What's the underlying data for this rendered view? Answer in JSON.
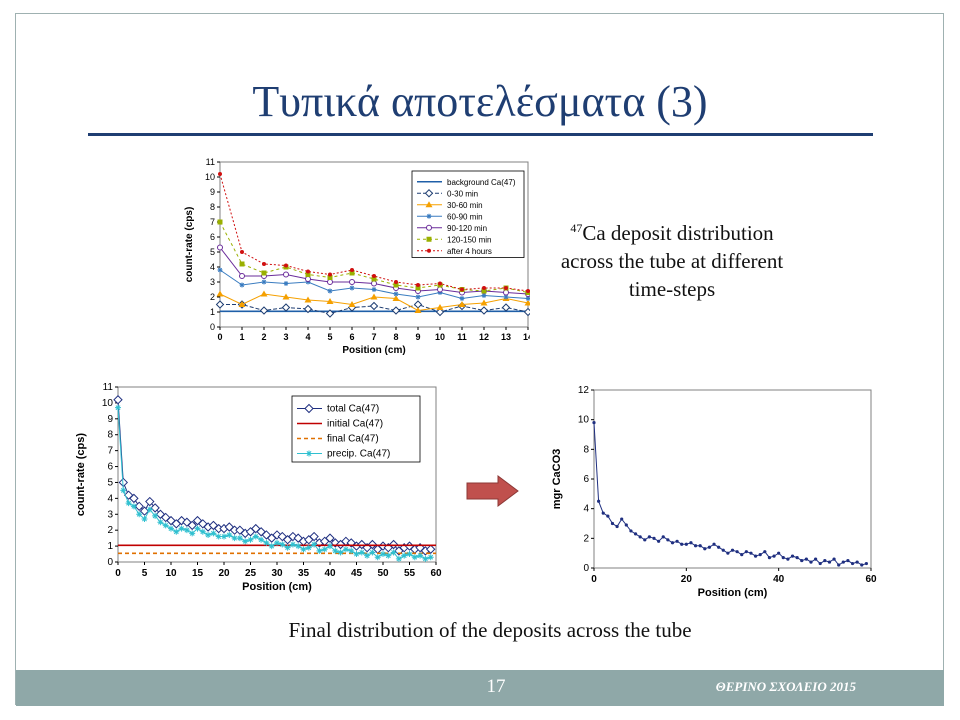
{
  "slide": {
    "title": "Τυπικά αποτελέσματα (3)",
    "caption_top_sup": "47",
    "caption_top": "Ca deposit distribution across the tube at different time-steps",
    "caption_bottom": "Final distribution of the deposits across the tube",
    "page_number": "17",
    "footer_text": "ΘΕΡΙΝΟ ΣΧΟΛΕΙΟ 2015",
    "colors": {
      "title": "#1f3e72",
      "footer": "#8fa8a8",
      "arrow": "#c0504d"
    },
    "arrow_icon": "right-arrow-icon"
  },
  "chart_data": [
    {
      "type": "line",
      "xlabel": "Position (cm)",
      "ylabel": "count-rate (cps)",
      "xlim": [
        0,
        14
      ],
      "ylim": [
        0,
        11
      ],
      "xticks": [
        0,
        1,
        2,
        3,
        4,
        5,
        6,
        7,
        8,
        9,
        10,
        11,
        12,
        13,
        14
      ],
      "yticks": [
        0,
        1,
        2,
        3,
        4,
        5,
        6,
        7,
        8,
        9,
        10,
        11
      ],
      "legend": "top-right",
      "x": [
        0,
        1,
        2,
        3,
        4,
        5,
        6,
        7,
        8,
        9,
        10,
        11,
        12,
        13,
        14
      ],
      "series": [
        {
          "name": "background Ca(47)",
          "color": "#1f5fa8",
          "marker": "none",
          "dash": "",
          "values": [
            1.05,
            1.05,
            1.05,
            1.05,
            1.05,
            1.05,
            1.05,
            1.05,
            1.05,
            1.05,
            1.05,
            1.05,
            1.05,
            1.05,
            1.05
          ]
        },
        {
          "name": "0-30 min",
          "color": "#1f3e72",
          "marker": "diamond",
          "dash": "4,2",
          "values": [
            1.5,
            1.5,
            1.1,
            1.3,
            1.2,
            0.9,
            1.3,
            1.4,
            1.1,
            1.5,
            1.0,
            1.4,
            1.1,
            1.3,
            1.0
          ]
        },
        {
          "name": "30-60 min",
          "color": "#f5a000",
          "marker": "triangle",
          "dash": "",
          "values": [
            2.2,
            1.5,
            2.2,
            2.0,
            1.8,
            1.7,
            1.5,
            2.0,
            1.9,
            1.1,
            1.3,
            1.5,
            1.6,
            1.9,
            1.6
          ]
        },
        {
          "name": "60-90 min",
          "color": "#3a7cc0",
          "marker": "star",
          "dash": "",
          "values": [
            3.8,
            2.8,
            3.0,
            2.9,
            3.0,
            2.4,
            2.6,
            2.5,
            2.2,
            2.0,
            2.3,
            1.9,
            2.1,
            2.0,
            1.9
          ]
        },
        {
          "name": "90-120 min",
          "color": "#6a2c9a",
          "marker": "circle",
          "dash": "",
          "values": [
            5.3,
            3.4,
            3.4,
            3.5,
            3.2,
            3.0,
            3.0,
            2.9,
            2.6,
            2.4,
            2.5,
            2.3,
            2.4,
            2.3,
            2.2
          ]
        },
        {
          "name": "120-150 min",
          "color": "#9ab000",
          "marker": "square",
          "dash": "3,3",
          "values": [
            7.0,
            4.2,
            3.6,
            4.0,
            3.5,
            3.3,
            3.6,
            3.2,
            2.8,
            2.6,
            2.8,
            2.5,
            2.4,
            2.6,
            2.3
          ]
        },
        {
          "name": "after 4 hours",
          "color": "#d01010",
          "marker": "dot",
          "dash": "2,2",
          "values": [
            10.2,
            5.0,
            4.2,
            4.1,
            3.7,
            3.5,
            3.8,
            3.4,
            3.0,
            2.8,
            2.9,
            2.5,
            2.6,
            2.6,
            2.4
          ]
        }
      ]
    },
    {
      "type": "line",
      "xlabel": "Position (cm)",
      "ylabel": "count-rate (cps)",
      "xlim": [
        0,
        60
      ],
      "ylim": [
        0,
        11
      ],
      "xticks": [
        0,
        5,
        10,
        15,
        20,
        25,
        30,
        35,
        40,
        45,
        50,
        55,
        60
      ],
      "yticks": [
        0,
        1,
        2,
        3,
        4,
        5,
        6,
        7,
        8,
        9,
        10,
        11
      ],
      "legend": "top-right",
      "series": [
        {
          "name": "total Ca(47)",
          "color": "#1f2f80",
          "marker": "diamond",
          "dash": "",
          "x": [
            0,
            1,
            2,
            3,
            4,
            5,
            6,
            7,
            8,
            9,
            10,
            11,
            12,
            13,
            14,
            15,
            16,
            17,
            18,
            19,
            20,
            21,
            22,
            23,
            24,
            25,
            26,
            27,
            28,
            29,
            30,
            31,
            32,
            33,
            34,
            35,
            36,
            37,
            38,
            39,
            40,
            41,
            42,
            43,
            44,
            45,
            46,
            47,
            48,
            49,
            50,
            51,
            52,
            53,
            54,
            55,
            56,
            57,
            58,
            59
          ],
          "values": [
            10.2,
            5.0,
            4.2,
            4.0,
            3.5,
            3.2,
            3.8,
            3.4,
            3.0,
            2.8,
            2.6,
            2.4,
            2.6,
            2.5,
            2.3,
            2.6,
            2.4,
            2.2,
            2.3,
            2.1,
            2.1,
            2.2,
            2.0,
            2.0,
            1.8,
            1.9,
            2.1,
            1.9,
            1.7,
            1.5,
            1.7,
            1.6,
            1.4,
            1.6,
            1.5,
            1.3,
            1.4,
            1.6,
            1.2,
            1.3,
            1.5,
            1.2,
            1.1,
            1.3,
            1.2,
            1.0,
            1.1,
            0.9,
            1.1,
            0.8,
            1.0,
            0.9,
            1.1,
            0.7,
            0.9,
            1.0,
            0.8,
            0.9,
            0.7,
            0.8
          ]
        },
        {
          "name": "initial Ca(47)",
          "color": "#c00000",
          "marker": "none",
          "dash": "",
          "x": [
            0,
            60
          ],
          "values": [
            1.05,
            1.05
          ]
        },
        {
          "name": "final Ca(47)",
          "color": "#e07000",
          "marker": "none",
          "dash": "4,3",
          "x": [
            0,
            60
          ],
          "values": [
            0.55,
            0.55
          ]
        },
        {
          "name": "precip. Ca(47)",
          "color": "#30c0d0",
          "marker": "star",
          "dash": "",
          "x": [
            0,
            1,
            2,
            3,
            4,
            5,
            6,
            7,
            8,
            9,
            10,
            11,
            12,
            13,
            14,
            15,
            16,
            17,
            18,
            19,
            20,
            21,
            22,
            23,
            24,
            25,
            26,
            27,
            28,
            29,
            30,
            31,
            32,
            33,
            34,
            35,
            36,
            37,
            38,
            39,
            40,
            41,
            42,
            43,
            44,
            45,
            46,
            47,
            48,
            49,
            50,
            51,
            52,
            53,
            54,
            55,
            56,
            57,
            58,
            59
          ],
          "values": [
            9.7,
            4.5,
            3.7,
            3.5,
            3.0,
            2.7,
            3.3,
            2.9,
            2.5,
            2.3,
            2.1,
            1.9,
            2.1,
            2.0,
            1.8,
            2.1,
            1.9,
            1.7,
            1.8,
            1.6,
            1.6,
            1.7,
            1.5,
            1.5,
            1.3,
            1.4,
            1.6,
            1.4,
            1.2,
            1.0,
            1.2,
            1.1,
            0.9,
            1.1,
            1.0,
            0.8,
            0.9,
            1.1,
            0.7,
            0.8,
            1.0,
            0.7,
            0.6,
            0.8,
            0.7,
            0.5,
            0.6,
            0.4,
            0.6,
            0.3,
            0.5,
            0.4,
            0.6,
            0.2,
            0.4,
            0.5,
            0.3,
            0.4,
            0.2,
            0.3
          ]
        }
      ]
    },
    {
      "type": "line",
      "xlabel": "Position (cm)",
      "ylabel": "mgr CaCO3",
      "xlim": [
        0,
        60
      ],
      "ylim": [
        0,
        12
      ],
      "xticks": [
        0,
        20,
        40,
        60
      ],
      "yticks": [
        0,
        2,
        4,
        6,
        8,
        10,
        12
      ],
      "series": [
        {
          "name": "",
          "color": "#1f2f80",
          "marker": "dot",
          "dash": "",
          "x": [
            0,
            1,
            2,
            3,
            4,
            5,
            6,
            7,
            8,
            9,
            10,
            11,
            12,
            13,
            14,
            15,
            16,
            17,
            18,
            19,
            20,
            21,
            22,
            23,
            24,
            25,
            26,
            27,
            28,
            29,
            30,
            31,
            32,
            33,
            34,
            35,
            36,
            37,
            38,
            39,
            40,
            41,
            42,
            43,
            44,
            45,
            46,
            47,
            48,
            49,
            50,
            51,
            52,
            53,
            54,
            55,
            56,
            57,
            58,
            59
          ],
          "values": [
            9.8,
            4.5,
            3.7,
            3.5,
            3.0,
            2.8,
            3.3,
            2.9,
            2.5,
            2.3,
            2.1,
            1.9,
            2.1,
            2.0,
            1.8,
            2.1,
            1.9,
            1.7,
            1.8,
            1.6,
            1.6,
            1.7,
            1.5,
            1.5,
            1.3,
            1.4,
            1.6,
            1.4,
            1.2,
            1.0,
            1.2,
            1.1,
            0.9,
            1.1,
            1.0,
            0.8,
            0.9,
            1.1,
            0.7,
            0.8,
            1.0,
            0.7,
            0.6,
            0.8,
            0.7,
            0.5,
            0.6,
            0.4,
            0.6,
            0.3,
            0.5,
            0.4,
            0.6,
            0.2,
            0.4,
            0.5,
            0.3,
            0.4,
            0.2,
            0.3
          ]
        }
      ]
    }
  ]
}
